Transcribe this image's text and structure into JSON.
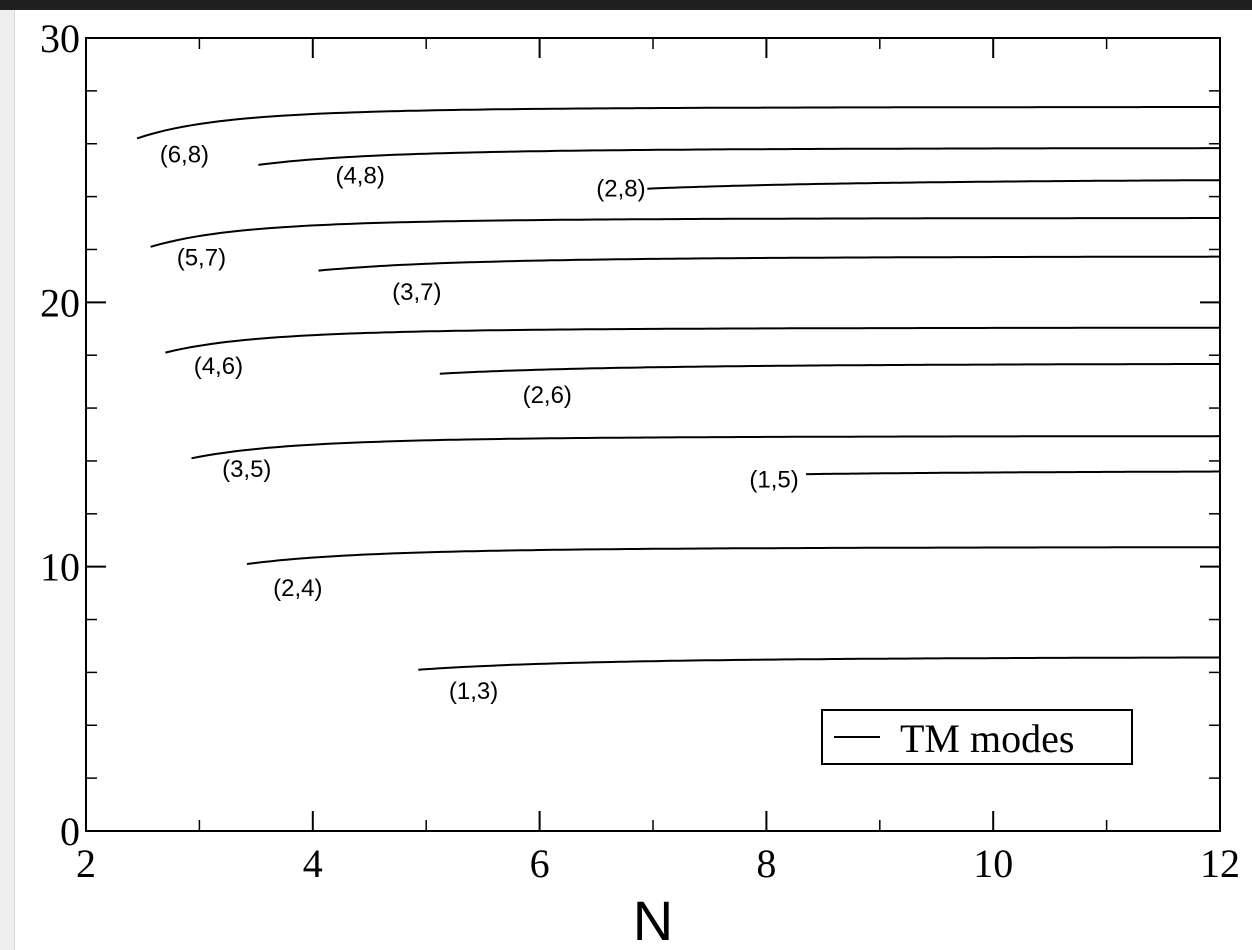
{
  "chart_data": {
    "type": "line",
    "xlabel": "N",
    "ylabel": "",
    "xlim": [
      2,
      12
    ],
    "ylim": [
      0,
      30
    ],
    "x_major_ticks": [
      2,
      4,
      6,
      8,
      10,
      12
    ],
    "x_tick_labels": [
      "2",
      "4",
      "6",
      "8",
      "10",
      "12"
    ],
    "x_minor_ticks": [
      3,
      5,
      7,
      9,
      11
    ],
    "y_major_ticks": [
      0,
      10,
      20,
      30
    ],
    "y_tick_labels": [
      "0",
      "10",
      "20",
      "30"
    ],
    "y_minor_ticks": [
      2,
      4,
      6,
      8,
      12,
      14,
      16,
      18,
      22,
      24,
      26,
      28
    ],
    "grid": false,
    "legend": {
      "position": "bottom-right",
      "entries": [
        "TM modes"
      ]
    },
    "series_color": "#000000",
    "series": [
      {
        "label": "(1,3)",
        "start": [
          4.93,
          6.1
        ],
        "asymptote": 6.6,
        "label_at": [
          5.2,
          5.3
        ]
      },
      {
        "label": "(2,4)",
        "start": [
          3.42,
          10.1
        ],
        "asymptote": 10.75,
        "label_at": [
          3.65,
          9.2
        ]
      },
      {
        "label": "(1,5)",
        "start": [
          8.35,
          13.5
        ],
        "asymptote": 13.65,
        "label_at": [
          7.85,
          13.3
        ]
      },
      {
        "label": "(3,5)",
        "start": [
          2.93,
          14.1
        ],
        "asymptote": 14.95,
        "label_at": [
          3.2,
          13.7
        ]
      },
      {
        "label": "(2,6)",
        "start": [
          5.12,
          17.3
        ],
        "asymptote": 17.7,
        "label_at": [
          5.85,
          16.5
        ]
      },
      {
        "label": "(4,6)",
        "start": [
          2.7,
          18.1
        ],
        "asymptote": 19.05,
        "label_at": [
          2.95,
          17.6
        ]
      },
      {
        "label": "(3,7)",
        "start": [
          4.05,
          21.2
        ],
        "asymptote": 21.75,
        "label_at": [
          4.7,
          20.4
        ]
      },
      {
        "label": "(5,7)",
        "start": [
          2.57,
          22.1
        ],
        "asymptote": 23.2,
        "label_at": [
          2.8,
          21.7
        ]
      },
      {
        "label": "(2,8)",
        "start": [
          6.95,
          24.3
        ],
        "asymptote": 24.7,
        "label_at": [
          6.5,
          24.3
        ]
      },
      {
        "label": "(4,8)",
        "start": [
          3.52,
          25.2
        ],
        "asymptote": 25.85,
        "label_at": [
          4.2,
          24.8
        ]
      },
      {
        "label": "(6,8)",
        "start": [
          2.45,
          26.2
        ],
        "asymptote": 27.4,
        "label_at": [
          2.65,
          25.6
        ]
      }
    ]
  }
}
